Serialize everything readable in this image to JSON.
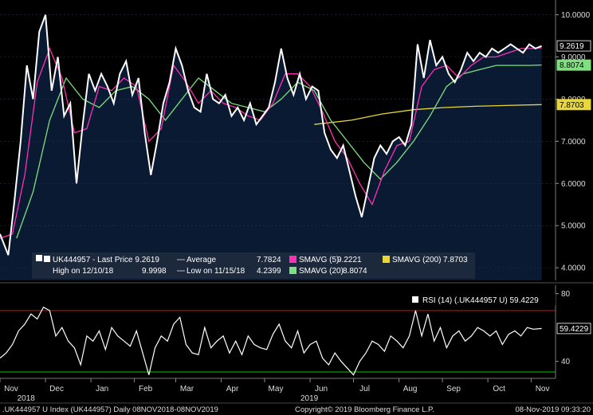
{
  "chart_data": {
    "type": "line",
    "ticker_label": "UK444957",
    "x_month_labels": [
      "Nov",
      "Dec",
      "Jan",
      "Feb",
      "Mar",
      "Apr",
      "May",
      "Jun",
      "Jul",
      "Aug",
      "Sep",
      "Oct",
      "Nov"
    ],
    "x_year_labels": [
      "2018",
      "2019"
    ],
    "colors": {
      "background": "#000000",
      "price_panel_bg": "#0b1a33",
      "price": "#ffffff",
      "smavg5": "#ff2fb4",
      "smavg20": "#7ee07e",
      "smavg200": "#e8d63a",
      "rsi": "#ffffff",
      "rsi_upper": "#d01010",
      "rsi_lower": "#10c010"
    },
    "price_panel": {
      "y_ticks": [
        "4.0000",
        "5.0000",
        "6.0000",
        "7.0000",
        "8.0000",
        "9.0000",
        "10.0000"
      ],
      "ylim": [
        3.7,
        10.2
      ],
      "series": {
        "price": {
          "x": [
            0,
            4,
            7,
            10,
            13,
            16,
            19,
            22,
            25,
            28,
            31,
            34,
            37,
            40,
            43,
            46,
            49,
            52,
            55,
            58,
            61,
            64,
            67,
            70,
            73,
            76,
            79,
            82,
            85,
            88,
            91,
            94,
            97,
            100,
            103,
            106,
            109,
            112,
            115,
            118,
            121,
            124,
            127,
            130,
            133,
            136,
            139,
            142,
            145,
            148,
            151,
            154,
            157,
            160,
            163,
            166,
            169,
            172,
            175,
            178,
            181,
            184,
            187,
            190,
            193,
            196,
            199,
            202,
            205,
            208,
            211,
            214,
            217,
            220,
            223,
            226,
            229,
            232,
            235,
            238,
            241,
            244,
            247,
            250,
            253,
            256,
            259,
            262
          ],
          "y": [
            4.8,
            4.3,
            5.6,
            7.0,
            8.8,
            8.0,
            9.6,
            10.0,
            8.2,
            9.0,
            7.6,
            7.9,
            6.0,
            7.4,
            8.6,
            8.2,
            8.6,
            8.3,
            7.9,
            8.6,
            8.9,
            8.1,
            8.5,
            7.2,
            6.2,
            7.0,
            7.9,
            8.4,
            9.2,
            8.8,
            8.2,
            7.8,
            7.7,
            8.6,
            8.0,
            7.9,
            8.1,
            7.6,
            7.8,
            7.5,
            7.9,
            7.4,
            7.6,
            7.8,
            8.4,
            9.2,
            8.5,
            8.1,
            8.6,
            8.0,
            8.3,
            8.2,
            7.2,
            6.8,
            6.6,
            6.9,
            6.3,
            5.7,
            5.2,
            5.9,
            6.6,
            6.9,
            6.7,
            7.0,
            7.1,
            6.9,
            7.4,
            9.3,
            8.5,
            9.4,
            8.8,
            9.0,
            8.6,
            8.4,
            8.7,
            9.1,
            8.9,
            9.1,
            9.0,
            9.2,
            9.1,
            9.2,
            9.3,
            9.2,
            9.1,
            9.3,
            9.2,
            9.26
          ]
        },
        "smavg5": {
          "x": [
            0,
            6,
            12,
            18,
            24,
            30,
            36,
            42,
            48,
            54,
            60,
            66,
            72,
            78,
            84,
            90,
            96,
            102,
            108,
            114,
            120,
            126,
            132,
            138,
            144,
            150,
            156,
            162,
            168,
            174,
            180,
            186,
            192,
            198,
            204,
            210,
            216,
            222,
            228,
            234,
            240,
            246,
            252,
            258,
            262
          ],
          "y": [
            4.7,
            4.8,
            6.2,
            8.4,
            9.2,
            8.5,
            7.2,
            7.3,
            8.3,
            8.2,
            8.5,
            8.3,
            7.0,
            7.3,
            8.8,
            8.4,
            7.9,
            8.2,
            7.9,
            7.8,
            7.6,
            7.5,
            7.9,
            8.6,
            8.6,
            8.3,
            7.7,
            7.0,
            6.6,
            6.0,
            5.5,
            6.3,
            6.9,
            7.0,
            8.3,
            8.7,
            8.8,
            8.5,
            8.8,
            9.0,
            9.0,
            9.1,
            9.2,
            9.2,
            9.22
          ]
        },
        "smavg20": {
          "x": [
            8,
            16,
            24,
            32,
            40,
            48,
            56,
            64,
            72,
            80,
            88,
            96,
            104,
            112,
            120,
            128,
            136,
            144,
            152,
            160,
            168,
            176,
            184,
            192,
            200,
            208,
            216,
            224,
            232,
            240,
            248,
            256,
            262
          ],
          "y": [
            4.7,
            5.8,
            7.5,
            8.5,
            8.0,
            7.8,
            8.2,
            8.3,
            8.0,
            7.5,
            8.0,
            8.5,
            8.2,
            7.9,
            7.8,
            7.7,
            8.0,
            8.4,
            8.2,
            7.5,
            7.0,
            6.5,
            6.1,
            6.5,
            7.0,
            7.6,
            8.3,
            8.6,
            8.7,
            8.8,
            8.8,
            8.8,
            8.81
          ]
        },
        "smavg200": {
          "x": [
            152,
            170,
            185,
            200,
            215,
            230,
            245,
            262
          ],
          "y": [
            7.4,
            7.5,
            7.65,
            7.75,
            7.8,
            7.83,
            7.85,
            7.87
          ]
        }
      },
      "value_tags": {
        "price": "9.2619",
        "smavg20": "8.8074",
        "smavg200": "7.8703"
      },
      "legend": {
        "price_line": "UK444957 - Last Price 9.2619",
        "high_line": "High on 12/10/18",
        "high_value": "9.9998",
        "average_label": "Average",
        "average_value": "7.7824",
        "low_label": "Low on 11/15/18",
        "low_value": "4.2399",
        "smavg5_label": "SMAVG (5)",
        "smavg5_value": "9.2221",
        "smavg20_label": "SMAVG (20)",
        "smavg20_value": "8.8074",
        "smavg200_label": "SMAVG (200)",
        "smavg200_value": "7.8703"
      }
    },
    "rsi_panel": {
      "legend": "RSI (14) (.UK444957 U) 59.4229",
      "value_tag": "59.4229",
      "y_ticks": [
        "40",
        "80"
      ],
      "ylim": [
        30,
        85
      ],
      "upper_level": 70,
      "lower_level": 30,
      "series": {
        "x": [
          0,
          3,
          6,
          9,
          12,
          15,
          18,
          21,
          24,
          27,
          30,
          33,
          36,
          39,
          42,
          45,
          48,
          51,
          54,
          57,
          60,
          63,
          66,
          69,
          72,
          75,
          78,
          81,
          84,
          87,
          90,
          93,
          96,
          99,
          102,
          105,
          108,
          111,
          114,
          117,
          120,
          123,
          126,
          129,
          132,
          135,
          138,
          141,
          144,
          147,
          150,
          153,
          156,
          159,
          162,
          165,
          168,
          171,
          174,
          177,
          180,
          183,
          186,
          189,
          192,
          195,
          198,
          201,
          204,
          207,
          210,
          213,
          216,
          219,
          222,
          225,
          228,
          231,
          234,
          237,
          240,
          243,
          246,
          249,
          252,
          255,
          258,
          262
        ],
        "y": [
          42,
          45,
          50,
          58,
          62,
          68,
          65,
          72,
          70,
          55,
          60,
          52,
          48,
          38,
          55,
          52,
          58,
          47,
          60,
          55,
          52,
          49,
          58,
          45,
          32,
          48,
          55,
          52,
          62,
          66,
          50,
          45,
          44,
          60,
          48,
          52,
          55,
          45,
          52,
          44,
          55,
          50,
          48,
          47,
          56,
          62,
          52,
          48,
          58,
          45,
          50,
          52,
          42,
          38,
          45,
          40,
          36,
          32,
          40,
          45,
          52,
          50,
          46,
          55,
          52,
          48,
          55,
          70,
          55,
          68,
          52,
          60,
          48,
          55,
          58,
          52,
          55,
          60,
          58,
          55,
          58,
          50,
          56,
          58,
          55,
          60,
          59,
          59.42
        ]
      }
    },
    "footer": {
      "left": ".UK444957 U Index (UK444957)  Daily 08NOV2018-08NOV2019",
      "center": "Copyright© 2019 Bloomberg Finance L.P.",
      "right": "08-Nov-2019 09:33:20"
    }
  }
}
